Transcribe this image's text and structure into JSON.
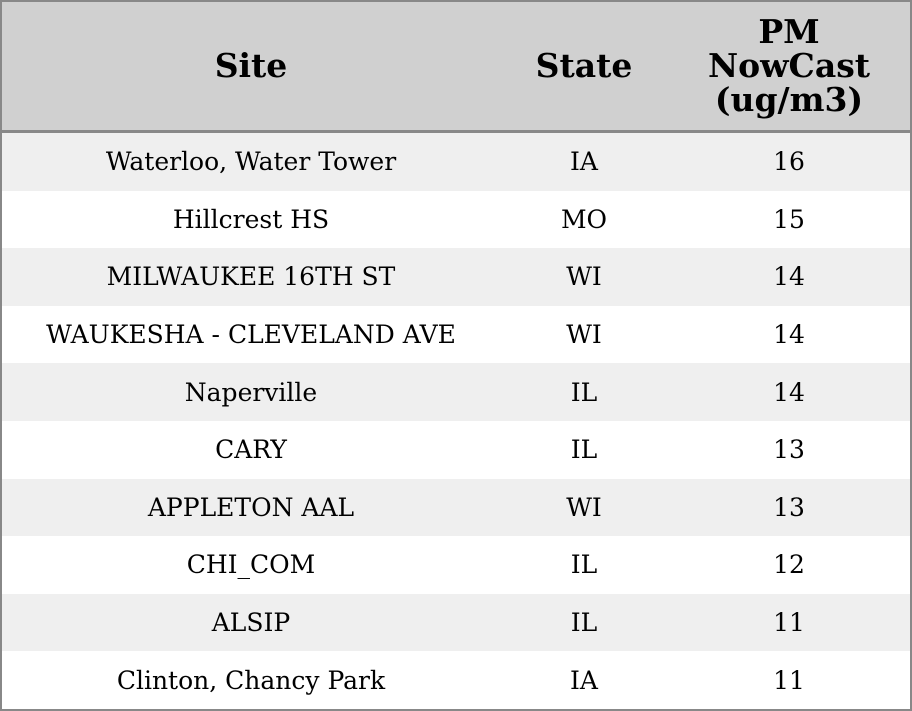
{
  "table": {
    "columns": [
      "Site",
      "State",
      "PM NowCast (ug/m3)"
    ],
    "rows": [
      [
        "Waterloo, Water Tower",
        "IA",
        16
      ],
      [
        "Hillcrest HS",
        "MO",
        15
      ],
      [
        "MILWAUKEE 16TH ST",
        "WI",
        14
      ],
      [
        "WAUKESHA - CLEVELAND AVE",
        "WI",
        14
      ],
      [
        "Naperville",
        "IL",
        14
      ],
      [
        "CARY",
        "IL",
        13
      ],
      [
        "APPLETON AAL",
        "WI",
        13
      ],
      [
        "CHI_COM",
        "IL",
        12
      ],
      [
        "ALSIP",
        "IL",
        11
      ],
      [
        "Clinton, Chancy Park",
        "IA",
        11
      ]
    ]
  }
}
